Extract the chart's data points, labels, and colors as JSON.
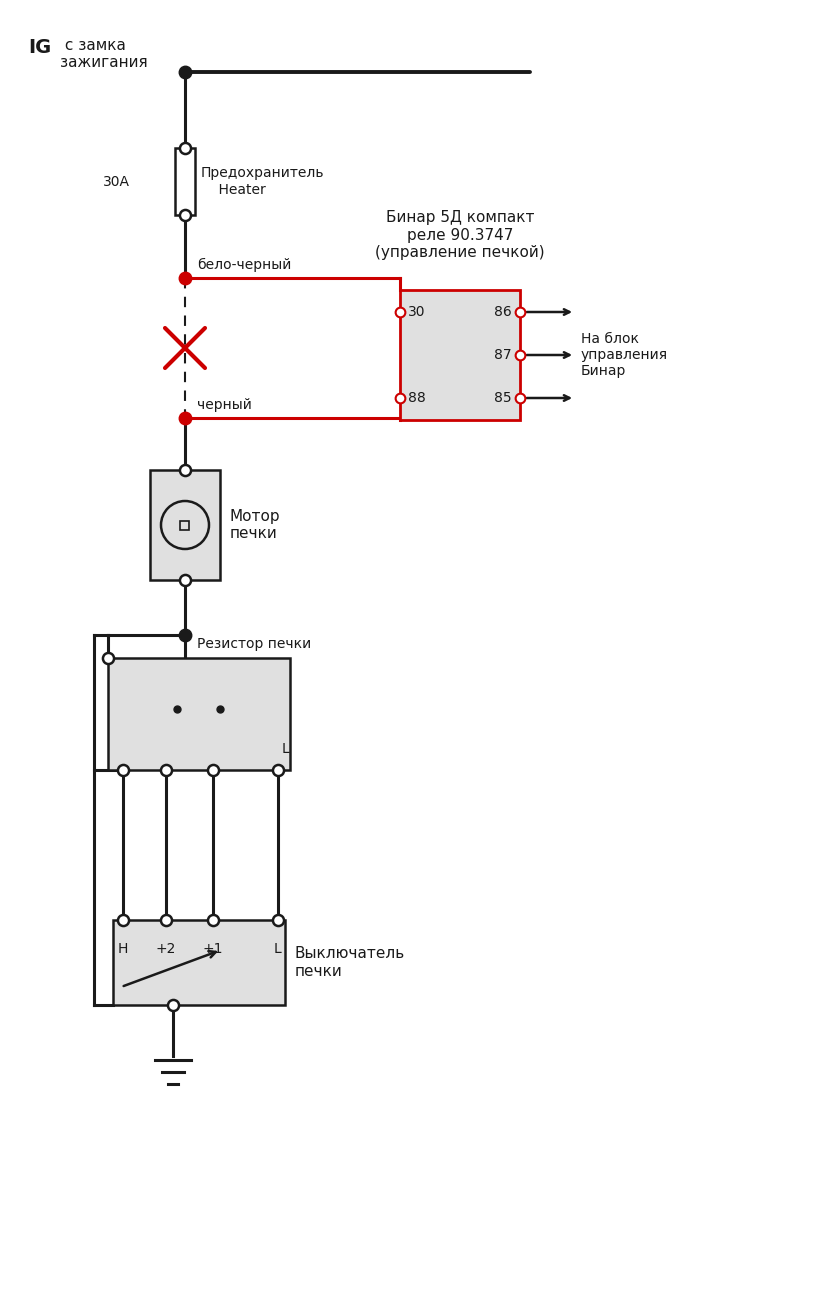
{
  "bg_color": "#ffffff",
  "line_color": "#1a1a1a",
  "red_color": "#cc0000",
  "gray_fill": "#e0e0e0",
  "white_fill": "#ffffff",
  "text_ig_bold": "IG",
  "text_ig_normal": " с замка\nзажигания",
  "text_fuse": "Предохранитель\n    Heater",
  "text_30a": "30А",
  "text_binar": "Бинар 5Д компакт\nреле 90.3747\n(управление печкой)",
  "text_wbc": "бело-черный",
  "text_wblack": "черный",
  "text_motor": "Мотор\nпечки",
  "text_resistor": "Резистор печки",
  "text_switch": "Выключатель\nпечки",
  "text_na_blok": "На блок\nуправления\nБинар",
  "text_L": "L",
  "relay_pins_left": [
    "30",
    "88"
  ],
  "relay_pins_right": [
    "86",
    "87",
    "85"
  ],
  "switch_labels": [
    "H",
    "+2",
    "+1",
    "L"
  ]
}
